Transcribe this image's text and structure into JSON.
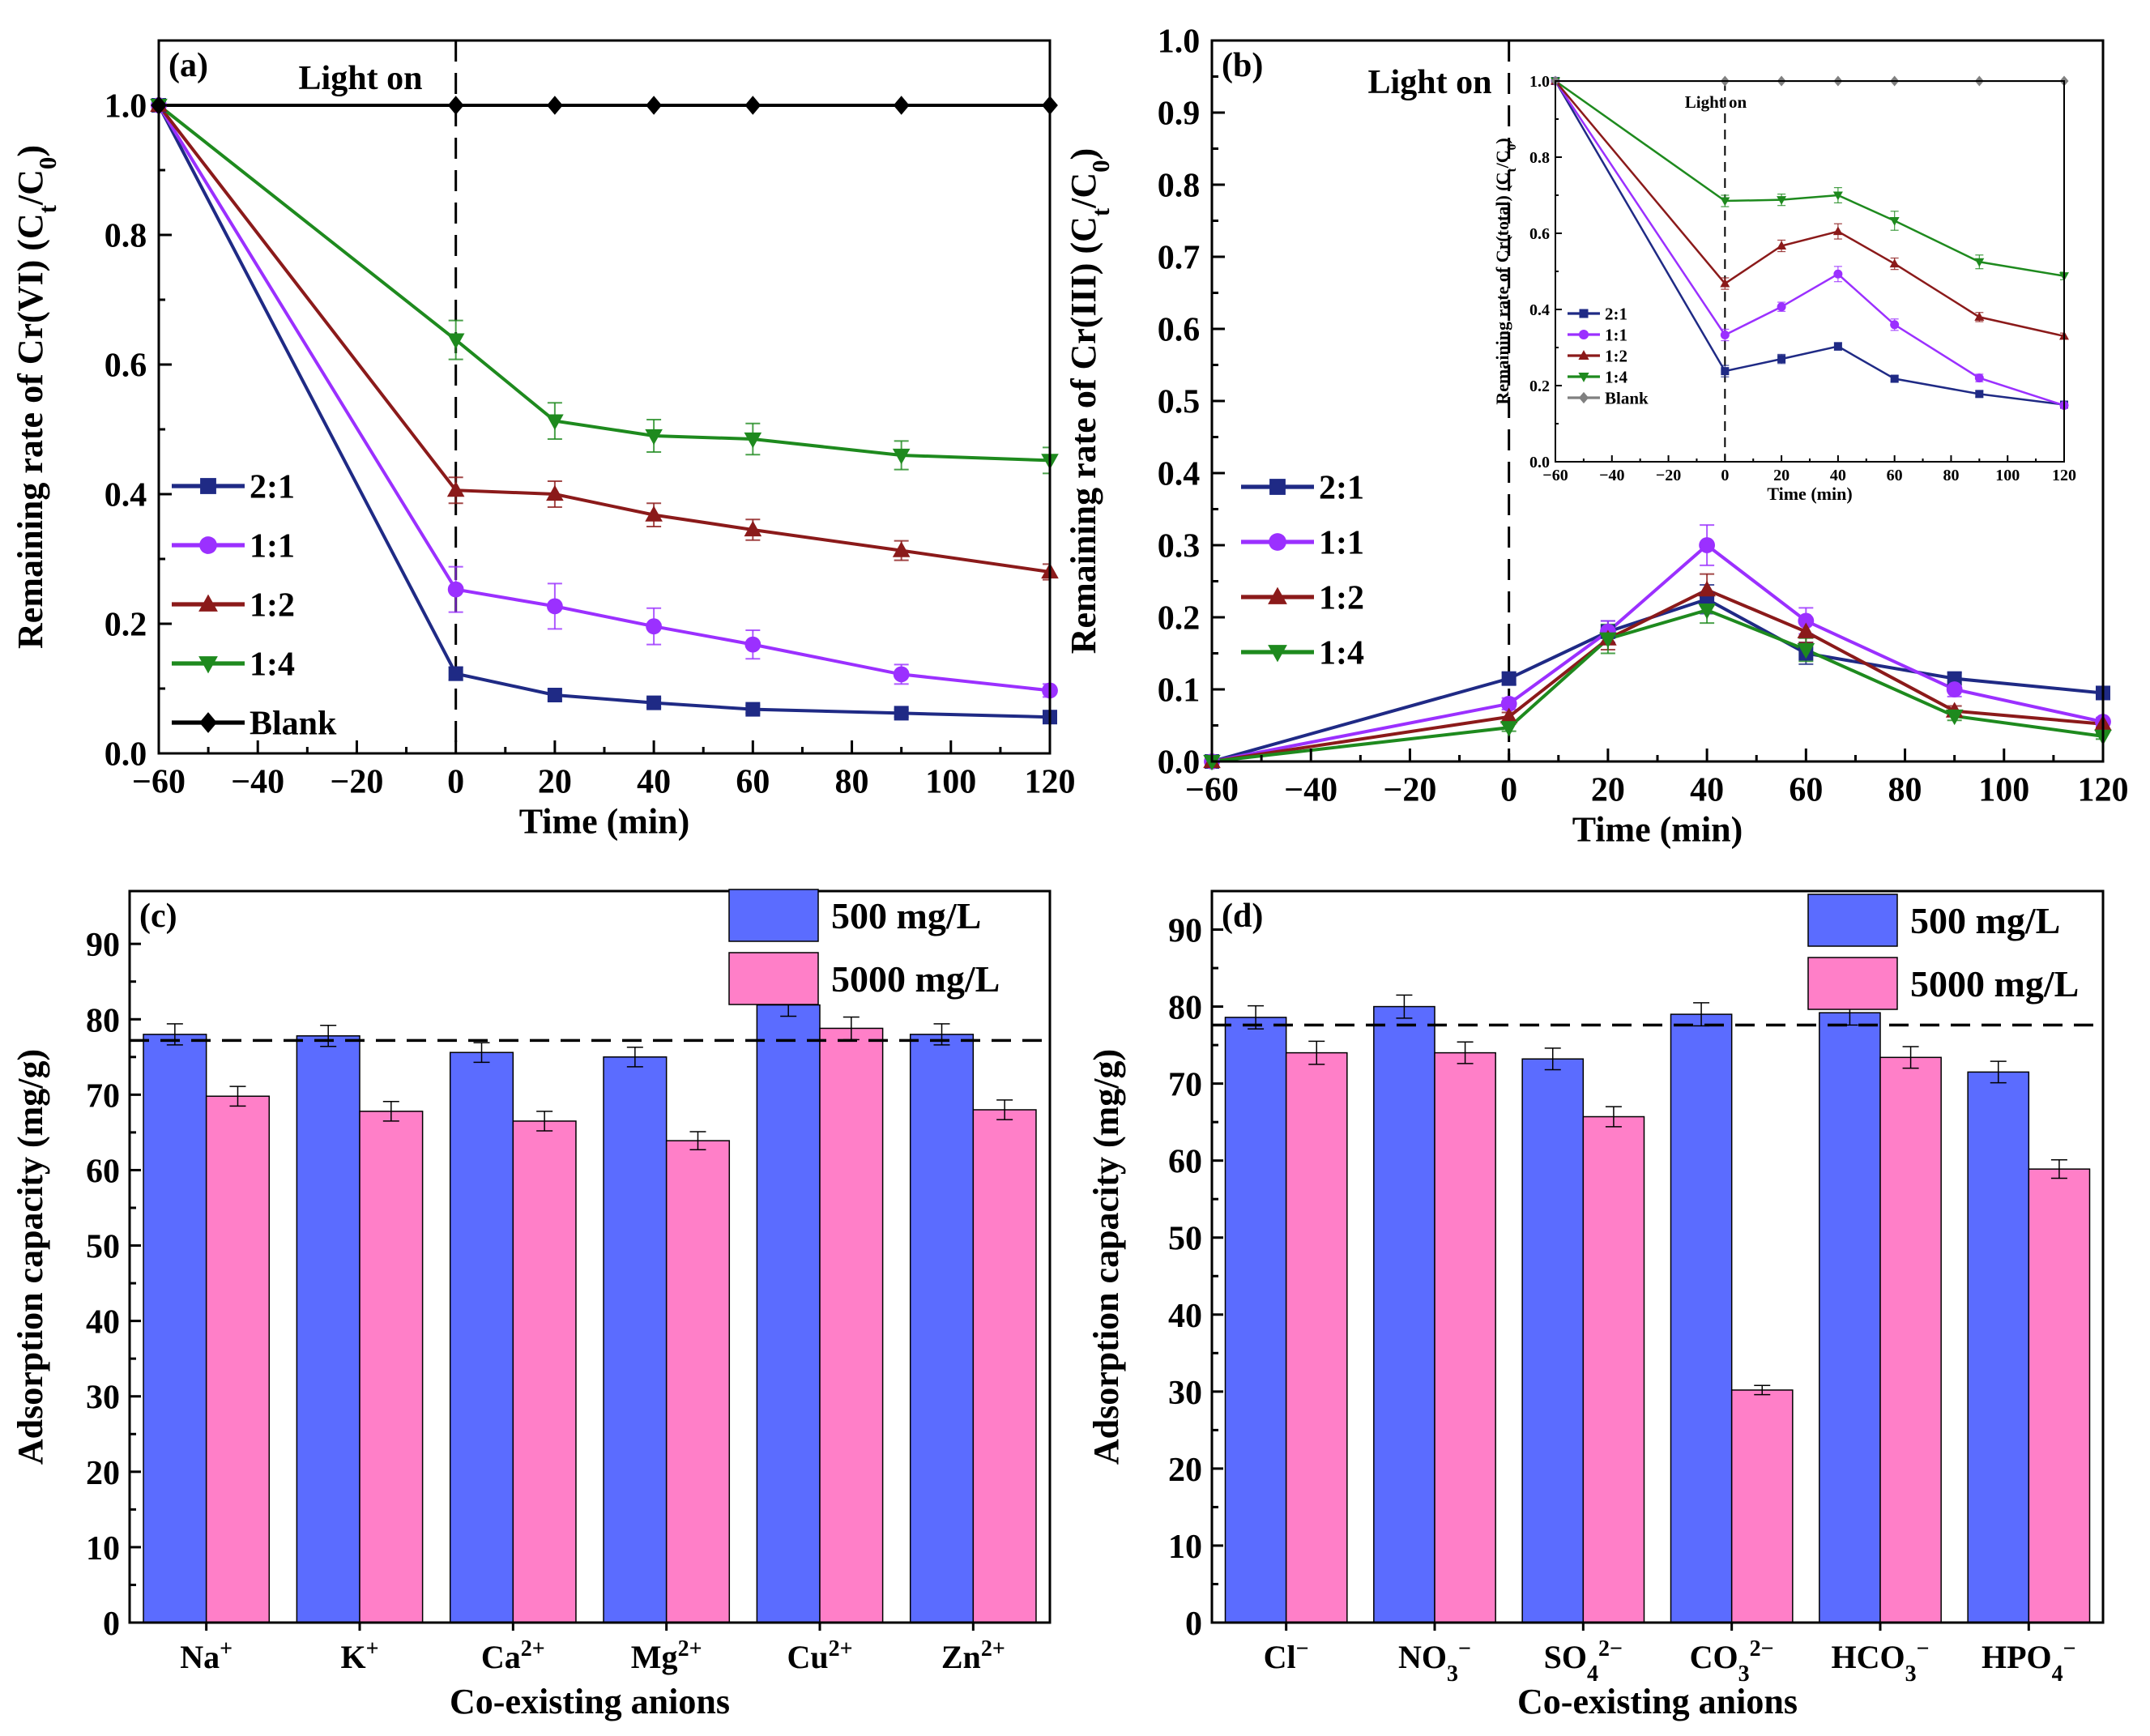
{
  "chart_data": [
    {
      "panel": "(a)",
      "type": "line",
      "annotation": "Light on",
      "xlabel": "Time (min)",
      "ylabel": "Remaining rate of Cr(VI) (C",
      "ylabel_sub1": "t",
      "ylabel_mid": "/C",
      "ylabel_sub2": "0",
      "ylabel_end": ")",
      "xlim": [
        -60,
        120
      ],
      "ylim": [
        0.0,
        1.1
      ],
      "xticks": [
        -60,
        -40,
        -20,
        0,
        20,
        40,
        60,
        80,
        100,
        120
      ],
      "xtick_labels": [
        "−60",
        "−40",
        "−20",
        "0",
        "20",
        "40",
        "60",
        "80",
        "100",
        "120"
      ],
      "yticks": [
        0.0,
        0.2,
        0.4,
        0.6,
        0.8,
        1.0
      ],
      "ytick_labels": [
        "0.0",
        "0.2",
        "0.4",
        "0.6",
        "0.8",
        "1.0"
      ],
      "light_on_x": 0,
      "x": [
        -60,
        0,
        20,
        40,
        60,
        90,
        120
      ],
      "series": [
        {
          "name": "2:1",
          "color": "#1f2a85",
          "marker": "square",
          "values": [
            1.0,
            0.123,
            0.09,
            0.078,
            0.068,
            0.062,
            0.056
          ],
          "errors": [
            0,
            0.01,
            0.008,
            0.007,
            0.006,
            0.006,
            0.005
          ]
        },
        {
          "name": "1:1",
          "color": "#9b30ff",
          "marker": "circle",
          "values": [
            1.0,
            0.253,
            0.227,
            0.196,
            0.168,
            0.122,
            0.097
          ],
          "errors": [
            0,
            0.035,
            0.035,
            0.028,
            0.022,
            0.015,
            0.01
          ]
        },
        {
          "name": "1:2",
          "color": "#8b1a1a",
          "marker": "triangle-up",
          "values": [
            1.0,
            0.406,
            0.4,
            0.368,
            0.345,
            0.313,
            0.28
          ],
          "errors": [
            0,
            0.02,
            0.02,
            0.018,
            0.016,
            0.015,
            0.012
          ]
        },
        {
          "name": "1:4",
          "color": "#1e8a1e",
          "marker": "triangle-down",
          "values": [
            1.0,
            0.638,
            0.513,
            0.49,
            0.485,
            0.46,
            0.452
          ],
          "errors": [
            0,
            0.03,
            0.028,
            0.025,
            0.024,
            0.022,
            0.02
          ]
        },
        {
          "name": "Blank",
          "color": "#000000",
          "marker": "diamond",
          "values": [
            1.0,
            1.0,
            1.0,
            1.0,
            1.0,
            1.0,
            1.0
          ],
          "errors": [
            0,
            0,
            0,
            0,
            0,
            0,
            0
          ]
        }
      ]
    },
    {
      "panel": "(b)",
      "type": "line",
      "annotation": "Light on",
      "xlabel": "Time (min)",
      "ylabel": "Remaining rate of Cr(III) (C",
      "ylabel_sub1": "t",
      "ylabel_mid": "/C",
      "ylabel_sub2": "0",
      "ylabel_end": ")",
      "xlim": [
        -60,
        120
      ],
      "ylim": [
        0.0,
        1.0
      ],
      "xticks": [
        -60,
        -40,
        -20,
        0,
        20,
        40,
        60,
        80,
        100,
        120
      ],
      "xtick_labels": [
        "−60",
        "−40",
        "−20",
        "0",
        "20",
        "40",
        "60",
        "80",
        "100",
        "120"
      ],
      "yticks": [
        0.0,
        0.1,
        0.2,
        0.3,
        0.4,
        0.5,
        0.6,
        0.7,
        0.8,
        0.9,
        1.0
      ],
      "ytick_labels": [
        "0.0",
        "0.1",
        "0.2",
        "0.3",
        "0.4",
        "0.5",
        "0.6",
        "0.7",
        "0.8",
        "0.9",
        "1.0"
      ],
      "light_on_x": 0,
      "x": [
        -60,
        0,
        20,
        40,
        60,
        90,
        120
      ],
      "series": [
        {
          "name": "2:1",
          "color": "#1f2a85",
          "marker": "square",
          "values": [
            0.0,
            0.115,
            0.18,
            0.225,
            0.15,
            0.115,
            0.095
          ],
          "errors": [
            0,
            0.008,
            0.015,
            0.02,
            0.015,
            0.008,
            0.006
          ]
        },
        {
          "name": "1:1",
          "color": "#9b30ff",
          "marker": "circle",
          "values": [
            0.0,
            0.08,
            0.18,
            0.3,
            0.195,
            0.1,
            0.055
          ],
          "errors": [
            0,
            0.008,
            0.015,
            0.028,
            0.018,
            0.01,
            0.006
          ]
        },
        {
          "name": "1:2",
          "color": "#8b1a1a",
          "marker": "triangle-up",
          "values": [
            0.0,
            0.062,
            0.17,
            0.238,
            0.18,
            0.07,
            0.052
          ],
          "errors": [
            0,
            0.006,
            0.015,
            0.022,
            0.015,
            0.007,
            0.005
          ]
        },
        {
          "name": "1:4",
          "color": "#1e8a1e",
          "marker": "triangle-down",
          "values": [
            0.0,
            0.047,
            0.17,
            0.21,
            0.155,
            0.063,
            0.035
          ],
          "errors": [
            0,
            0.005,
            0.02,
            0.018,
            0.016,
            0.006,
            0.004
          ]
        }
      ],
      "inset": {
        "type": "line",
        "annotation": "Light on",
        "xlabel": "Time (min)",
        "ylabel": "Remaining rate of Cr(total) (C",
        "ylabel_sub1": "t",
        "ylabel_mid": "/C",
        "ylabel_sub2": "0",
        "ylabel_end": ")",
        "xlim": [
          -60,
          120
        ],
        "ylim": [
          0.0,
          1.0
        ],
        "xticks": [
          -60,
          -40,
          -20,
          0,
          20,
          40,
          60,
          80,
          100,
          120
        ],
        "xtick_labels": [
          "−60",
          "−40",
          "−20",
          "0",
          "20",
          "40",
          "60",
          "80",
          "100",
          "120"
        ],
        "yticks": [
          0.0,
          0.2,
          0.4,
          0.6,
          0.8,
          1.0
        ],
        "ytick_labels": [
          "0.0",
          "0.2",
          "0.4",
          "0.6",
          "0.8",
          "1.0"
        ],
        "light_on_x": 0,
        "x": [
          -60,
          0,
          20,
          40,
          60,
          90,
          120
        ],
        "series": [
          {
            "name": "2:1",
            "color": "#1f2a85",
            "marker": "square",
            "values": [
              1.0,
              0.238,
              0.27,
              0.303,
              0.218,
              0.178,
              0.15
            ],
            "errors": [
              0,
              0.015,
              0.012,
              0.01,
              0.008,
              0.008,
              0.005
            ]
          },
          {
            "name": "1:1",
            "color": "#9b30ff",
            "marker": "circle",
            "values": [
              1.0,
              0.333,
              0.407,
              0.493,
              0.36,
              0.22,
              0.148
            ],
            "errors": [
              0,
              0.015,
              0.012,
              0.02,
              0.015,
              0.01,
              0.005
            ]
          },
          {
            "name": "1:2",
            "color": "#8b1a1a",
            "marker": "triangle-up",
            "values": [
              1.0,
              0.468,
              0.567,
              0.605,
              0.52,
              0.38,
              0.33
            ],
            "errors": [
              0,
              0.015,
              0.015,
              0.02,
              0.015,
              0.012,
              0.008
            ]
          },
          {
            "name": "1:4",
            "color": "#1e8a1e",
            "marker": "triangle-down",
            "values": [
              1.0,
              0.685,
              0.688,
              0.7,
              0.633,
              0.525,
              0.488
            ],
            "errors": [
              0,
              0.015,
              0.015,
              0.02,
              0.025,
              0.018,
              0.01
            ]
          },
          {
            "name": "Blank",
            "color": "#808080",
            "marker": "diamond",
            "values": [
              1.0,
              1.0,
              1.0,
              1.0,
              1.0,
              1.0,
              1.0
            ],
            "errors": [
              0,
              0,
              0,
              0,
              0,
              0,
              0
            ]
          }
        ]
      }
    },
    {
      "panel": "(c)",
      "type": "bar",
      "xlabel": "Co-existing anions",
      "ylabel": "Adsorption capacity (mg/g)",
      "ylim": [
        0,
        97
      ],
      "yticks": [
        0,
        10,
        20,
        30,
        40,
        50,
        60,
        70,
        80,
        90
      ],
      "ytick_labels": [
        "0",
        "10",
        "20",
        "30",
        "40",
        "50",
        "60",
        "70",
        "80",
        "90"
      ],
      "reference_line": 77.2,
      "categories": [
        {
          "base": "Na",
          "sub": "",
          "sup": "+"
        },
        {
          "base": "K",
          "sub": "",
          "sup": "+"
        },
        {
          "base": "Ca",
          "sub": "",
          "sup": "2+"
        },
        {
          "base": "Mg",
          "sub": "",
          "sup": "2+"
        },
        {
          "base": "Cu",
          "sub": "",
          "sup": "2+"
        },
        {
          "base": "Zn",
          "sub": "",
          "sup": "2+"
        }
      ],
      "series": [
        {
          "name": "500 mg/L",
          "color": "#5b6cff",
          "values": [
            78.0,
            77.8,
            75.6,
            75.0,
            81.9,
            78.0
          ],
          "errors": [
            1.4,
            1.4,
            1.3,
            1.3,
            1.5,
            1.4
          ]
        },
        {
          "name": "5000 mg/L",
          "color": "#ff7fc8",
          "values": [
            69.8,
            67.8,
            66.5,
            63.9,
            78.8,
            68.0
          ],
          "errors": [
            1.3,
            1.3,
            1.3,
            1.2,
            1.5,
            1.3
          ]
        }
      ]
    },
    {
      "panel": "(d)",
      "type": "bar",
      "xlabel": "Co-existing anions",
      "ylabel": "Adsorption capacity (mg/g)",
      "ylim": [
        0,
        95
      ],
      "yticks": [
        0,
        10,
        20,
        30,
        40,
        50,
        60,
        70,
        80,
        90
      ],
      "ytick_labels": [
        "0",
        "10",
        "20",
        "30",
        "40",
        "50",
        "60",
        "70",
        "80",
        "90"
      ],
      "reference_line": 77.6,
      "categories": [
        {
          "base": "Cl",
          "sub": "",
          "sup": "−"
        },
        {
          "base": "NO",
          "sub": "3",
          "sup": "−"
        },
        {
          "base": "SO",
          "sub": "4",
          "sup": "2−"
        },
        {
          "base": "CO",
          "sub": "3",
          "sup": "2−"
        },
        {
          "base": "HCO",
          "sub": "3",
          "sup": "−"
        },
        {
          "base": "HPO",
          "sub": "4",
          "sup": "−"
        }
      ],
      "series": [
        {
          "name": "500 mg/L",
          "color": "#5b6cff",
          "values": [
            78.6,
            80.0,
            73.2,
            79.0,
            79.2,
            71.5
          ],
          "errors": [
            1.5,
            1.5,
            1.4,
            1.5,
            1.6,
            1.4
          ]
        },
        {
          "name": "5000 mg/L",
          "color": "#ff7fc8",
          "values": [
            74.0,
            74.0,
            65.7,
            30.2,
            73.4,
            58.9
          ],
          "errors": [
            1.5,
            1.4,
            1.3,
            0.6,
            1.4,
            1.2
          ]
        }
      ]
    }
  ]
}
